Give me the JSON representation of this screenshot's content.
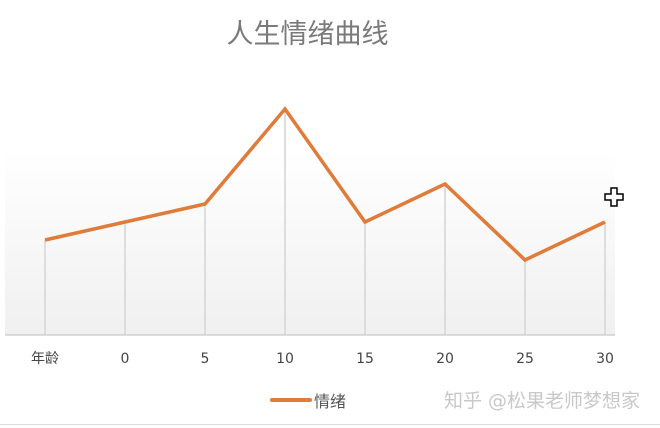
{
  "chart_data": {
    "type": "line",
    "title": "人生情绪曲线",
    "categories": [
      "年龄",
      "0",
      "5",
      "10",
      "15",
      "20",
      "25",
      "30"
    ],
    "series": [
      {
        "name": "情绪",
        "values": [
          95,
          113,
          131,
          226,
          113,
          151,
          75,
          113
        ],
        "color": "#e07b39"
      }
    ],
    "ylim": [
      0,
      250
    ],
    "xlabel": "",
    "ylabel": "",
    "grid": "vertical drop lines",
    "legend": "bottom"
  },
  "watermark": "知乎 @松果老师梦想家",
  "cursor_icon": "move-plus-cursor"
}
